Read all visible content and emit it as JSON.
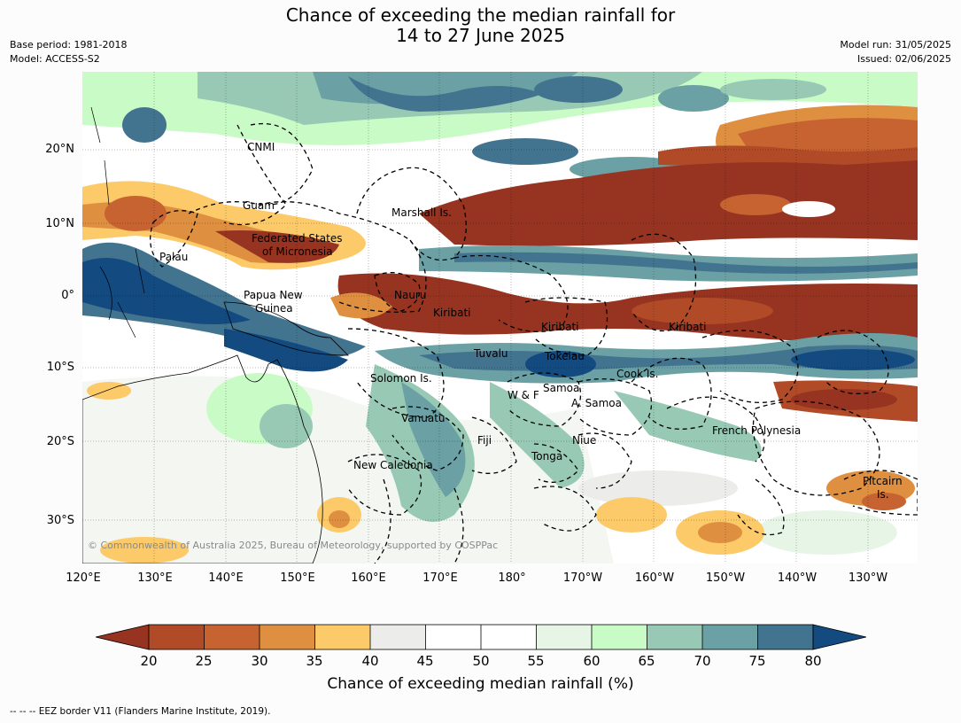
{
  "title_line1": "Chance of exceeding the median rainfall for",
  "title_line2": "14 to 27 June 2025",
  "meta": {
    "base_period": "Base period: 1981-2018",
    "model": "Model: ACCESS-S2",
    "model_run": "Model run: 31/05/2025",
    "issued": "Issued: 02/06/2025"
  },
  "map": {
    "lat_labels": [
      "20°N",
      "10°N",
      "0°",
      "10°S",
      "20°S",
      "30°S"
    ],
    "lon_labels": [
      "120°E",
      "130°E",
      "140°E",
      "150°E",
      "160°E",
      "170°E",
      "180°",
      "170°W",
      "160°W",
      "150°W",
      "140°W",
      "130°W"
    ],
    "regions": [
      "CNMI",
      "Guam",
      "Marshall Is.",
      "Federated States",
      "of Micronesia",
      "Palau",
      "Papua New",
      "Guinea",
      "Nauru",
      "Kiribati",
      "Kiribati",
      "Kiribati",
      "Tuvalu",
      "Tokelau",
      "Cook Is.",
      "Solomon Is.",
      "Samoa",
      "W & F",
      "A. Samoa",
      "Vanuatu",
      "Fiji",
      "Niue",
      "Tonga",
      "French Polynesia",
      "New Caledonia",
      "Pitcairn",
      "Is."
    ],
    "copyright": "© Commonwealth of Australia 2025, Bureau of Meteorology, supported by COSPPac"
  },
  "colorbar": {
    "ticks": [
      "20",
      "25",
      "30",
      "35",
      "40",
      "45",
      "50",
      "55",
      "60",
      "65",
      "70",
      "75",
      "80"
    ],
    "colors": {
      "below_20": "#963421",
      "20_25": "#b04a27",
      "25_30": "#c66330",
      "30_35": "#df8f40",
      "35_40": "#fcca68",
      "40_45": "#ececea",
      "45_50": "#ffffff",
      "50_55": "#ffffff",
      "55_60": "#e7f5e6",
      "60_65": "#c9fbc6",
      "65_70": "#98c9b4",
      "70_75": "#6ba1a4",
      "75_80": "#427490",
      "above_80": "#134b81"
    },
    "label": "Chance of exceeding median rainfall (%)"
  },
  "footer": "--  --  -- EEZ border V11 (Flanders Marine Institute, 2019)."
}
